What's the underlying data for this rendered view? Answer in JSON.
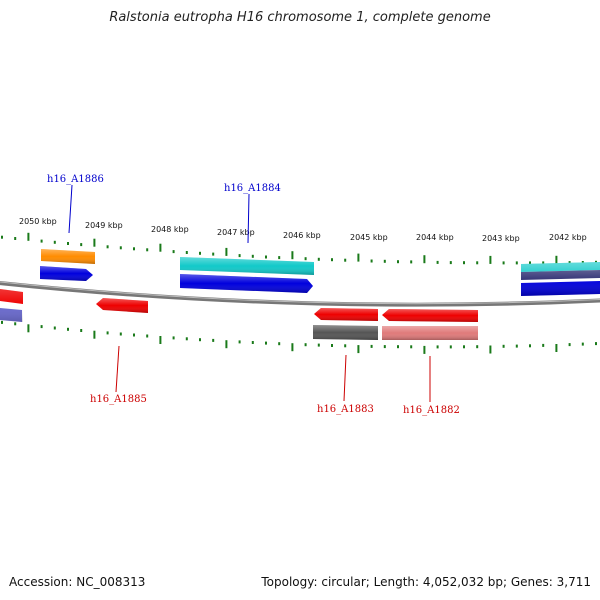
{
  "title": "Ralstonia eutropha H16 chromosome 1, complete genome",
  "footer": {
    "accession": "Accession: NC_008313",
    "summary": "Topology: circular; Length: 4,052,032 bp; Genes: 3,711"
  },
  "kbp_labels": [
    "2050 kbp",
    "2049 kbp",
    "2048 kbp",
    "2047 kbp",
    "2046 kbp",
    "2045 kbp",
    "2044 kbp",
    "2043 kbp",
    "2042 kbp"
  ],
  "gene_labels": [
    {
      "id": "h16_A1886",
      "strand": "forward"
    },
    {
      "id": "h16_A1884",
      "strand": "forward"
    },
    {
      "id": "h16_A1885",
      "strand": "reverse"
    },
    {
      "id": "h16_A1883",
      "strand": "reverse"
    },
    {
      "id": "h16_A1882",
      "strand": "reverse"
    }
  ],
  "colors": {
    "forward_label": "#0000cc",
    "reverse_label": "#cc0000",
    "tick": "#1a7a1a",
    "backbone": "#777777",
    "blue": "#0000dd",
    "cyan": "#11c9c9",
    "orange": "#ff8c00",
    "red": "#ee0000",
    "pink": "#e07a7a",
    "gray": "#555555",
    "violet": "#6a6acc",
    "navy": "#3a3a7a"
  }
}
